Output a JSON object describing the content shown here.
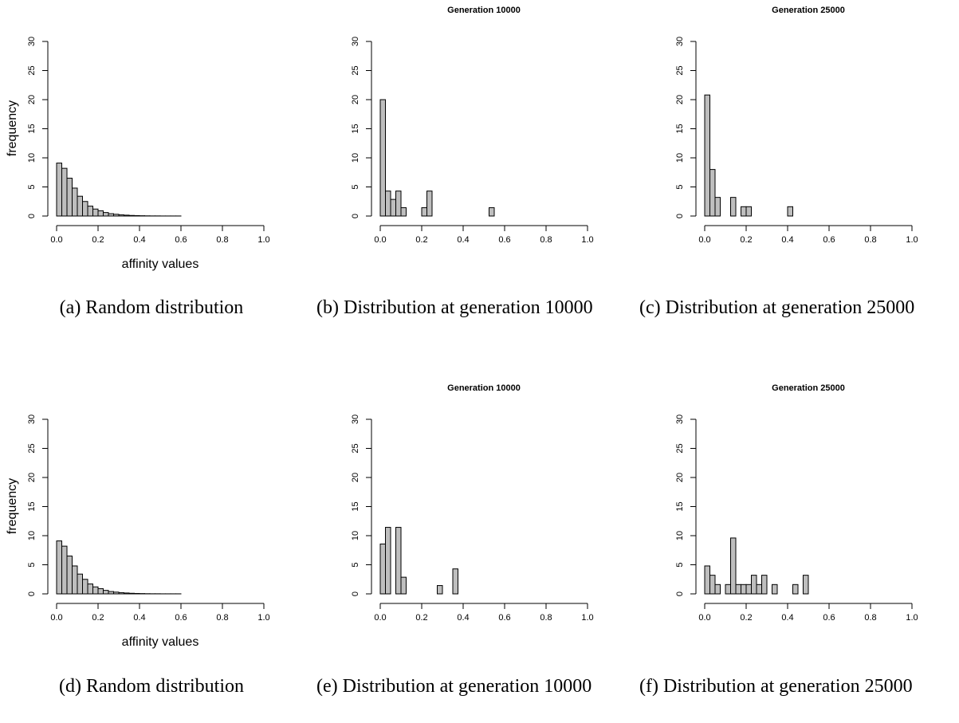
{
  "chart_data": [
    {
      "type": "histogram",
      "caption": "(a) Random distribution",
      "xlabel": "affinity values",
      "ylabel": "frequency",
      "bins": [
        0,
        0.025,
        0.05,
        0.075,
        0.1,
        0.125,
        0.15,
        0.175,
        0.2,
        0.225,
        0.25,
        0.275,
        0.3,
        0.325,
        0.35,
        0.375,
        0.4,
        0.425,
        0.45,
        0.475,
        0.5,
        0.525,
        0.55,
        0.575,
        0.6,
        0.625,
        0.65,
        0.675,
        0.7,
        0.725,
        0.75,
        0.775,
        0.8,
        0.825,
        0.85,
        0.875,
        0.9,
        0.925,
        0.95,
        0.975,
        1
      ],
      "values": [
        9.1,
        8.2,
        6.5,
        4.8,
        3.4,
        2.5,
        1.7,
        1.2,
        0.9,
        0.6,
        0.4,
        0.3,
        0.2,
        0.15,
        0.1,
        0.07,
        0.05,
        0.03,
        0.02,
        0.02,
        0.01,
        0.01,
        0.01,
        0.01,
        0,
        0,
        0,
        0,
        0,
        0,
        0,
        0,
        0,
        0,
        0,
        0,
        0,
        0,
        0,
        0
      ],
      "color": "#bebebe",
      "xlim": [
        0,
        1
      ],
      "ylim": [
        0,
        30
      ],
      "xticks": [
        {
          "value": 0,
          "label": "0.0"
        },
        0.2,
        0.4,
        0.6,
        0.8,
        {
          "value": 1,
          "label": "1.0"
        }
      ],
      "yticks": [
        0,
        5,
        10,
        15,
        20,
        25,
        30
      ]
    },
    {
      "type": "histogram",
      "title": "Generation 10000",
      "caption": "(b) Distribution at generation 10000",
      "bins": [
        0,
        0.025,
        0.05,
        0.075,
        0.1,
        0.125,
        0.15,
        0.175,
        0.2,
        0.225,
        0.25,
        0.275,
        0.3,
        0.325,
        0.35,
        0.375,
        0.4,
        0.425,
        0.45,
        0.475,
        0.5,
        0.525,
        0.55,
        0.575,
        0.6,
        0.625,
        0.65,
        0.675,
        0.7,
        0.725,
        0.75,
        0.775,
        0.8,
        0.825,
        0.85,
        0.875,
        0.9,
        0.925,
        0.95,
        0.975,
        1
      ],
      "values": [
        20,
        4.29,
        2.86,
        4.29,
        1.43,
        0,
        0,
        0,
        1.43,
        4.29,
        0,
        0,
        0,
        0,
        0,
        0,
        0,
        0,
        0,
        0,
        0,
        1.43,
        0,
        0,
        0,
        0,
        0,
        0,
        0,
        0,
        0,
        0,
        0,
        0,
        0,
        0,
        0,
        0,
        0,
        0
      ],
      "color": "#bebebe",
      "xlim": [
        0,
        1
      ],
      "ylim": [
        0,
        30
      ],
      "xticks": [
        {
          "value": 0,
          "label": "0.0"
        },
        0.2,
        0.4,
        0.6,
        0.8,
        {
          "value": 1,
          "label": "1.0"
        }
      ],
      "yticks": [
        0,
        5,
        10,
        15,
        20,
        25,
        30
      ]
    },
    {
      "type": "histogram",
      "title": "Generation 25000",
      "caption": "(c) Distribution at generation 25000",
      "bins": [
        0,
        0.025,
        0.05,
        0.075,
        0.1,
        0.125,
        0.15,
        0.175,
        0.2,
        0.225,
        0.25,
        0.275,
        0.3,
        0.325,
        0.35,
        0.375,
        0.4,
        0.425,
        0.45,
        0.475,
        0.5,
        0.525,
        0.55,
        0.575,
        0.6,
        0.625,
        0.65,
        0.675,
        0.7,
        0.725,
        0.75,
        0.775,
        0.8,
        0.825,
        0.85,
        0.875,
        0.9,
        0.925,
        0.95,
        0.975,
        1
      ],
      "values": [
        20.8,
        8,
        3.2,
        0,
        0,
        3.2,
        0,
        1.6,
        1.6,
        0,
        0,
        0,
        0,
        0,
        0,
        0,
        1.6,
        0,
        0,
        0,
        0,
        0,
        0,
        0,
        0,
        0,
        0,
        0,
        0,
        0,
        0,
        0,
        0,
        0,
        0,
        0,
        0,
        0,
        0,
        0
      ],
      "color": "#bebebe",
      "xlim": [
        0,
        1
      ],
      "ylim": [
        0,
        30
      ],
      "xticks": [
        {
          "value": 0,
          "label": "0.0"
        },
        0.2,
        0.4,
        0.6,
        0.8,
        {
          "value": 1,
          "label": "1.0"
        }
      ],
      "yticks": [
        0,
        5,
        10,
        15,
        20,
        25,
        30
      ]
    },
    {
      "type": "histogram",
      "caption": "(d) Random distribution",
      "xlabel": "affinity values",
      "ylabel": "frequency",
      "bins": [
        0,
        0.025,
        0.05,
        0.075,
        0.1,
        0.125,
        0.15,
        0.175,
        0.2,
        0.225,
        0.25,
        0.275,
        0.3,
        0.325,
        0.35,
        0.375,
        0.4,
        0.425,
        0.45,
        0.475,
        0.5,
        0.525,
        0.55,
        0.575,
        0.6,
        0.625,
        0.65,
        0.675,
        0.7,
        0.725,
        0.75,
        0.775,
        0.8,
        0.825,
        0.85,
        0.875,
        0.9,
        0.925,
        0.95,
        0.975,
        1
      ],
      "values": [
        9.1,
        8.2,
        6.5,
        4.8,
        3.4,
        2.5,
        1.7,
        1.2,
        0.9,
        0.6,
        0.4,
        0.3,
        0.2,
        0.15,
        0.1,
        0.07,
        0.05,
        0.03,
        0.02,
        0.02,
        0.01,
        0.01,
        0.01,
        0.01,
        0,
        0,
        0,
        0,
        0,
        0,
        0,
        0,
        0,
        0,
        0,
        0,
        0,
        0,
        0,
        0
      ],
      "color": "#bebebe",
      "xlim": [
        0,
        1
      ],
      "ylim": [
        0,
        30
      ],
      "xticks": [
        {
          "value": 0,
          "label": "0.0"
        },
        0.2,
        0.4,
        0.6,
        0.8,
        {
          "value": 1,
          "label": "1.0"
        }
      ],
      "yticks": [
        0,
        5,
        10,
        15,
        20,
        25,
        30
      ]
    },
    {
      "type": "histogram",
      "title": "Generation 10000",
      "caption": "(e) Distribution at generation 10000",
      "bins": [
        0,
        0.025,
        0.05,
        0.075,
        0.1,
        0.125,
        0.15,
        0.175,
        0.2,
        0.225,
        0.25,
        0.275,
        0.3,
        0.325,
        0.35,
        0.375,
        0.4,
        0.425,
        0.45,
        0.475,
        0.5,
        0.525,
        0.55,
        0.575,
        0.6,
        0.625,
        0.65,
        0.675,
        0.7,
        0.725,
        0.75,
        0.775,
        0.8,
        0.825,
        0.85,
        0.875,
        0.9,
        0.925,
        0.95,
        0.975,
        1
      ],
      "values": [
        8.57,
        11.43,
        0,
        11.43,
        2.86,
        0,
        0,
        0,
        0,
        0,
        0,
        1.43,
        0,
        0,
        4.29,
        0,
        0,
        0,
        0,
        0,
        0,
        0,
        0,
        0,
        0,
        0,
        0,
        0,
        0,
        0,
        0,
        0,
        0,
        0,
        0,
        0,
        0,
        0,
        0,
        0
      ],
      "color": "#bebebe",
      "xlim": [
        0,
        1
      ],
      "ylim": [
        0,
        30
      ],
      "xticks": [
        {
          "value": 0,
          "label": "0.0"
        },
        0.2,
        0.4,
        0.6,
        0.8,
        {
          "value": 1,
          "label": "1.0"
        }
      ],
      "yticks": [
        0,
        5,
        10,
        15,
        20,
        25,
        30
      ]
    },
    {
      "type": "histogram",
      "title": "Generation 25000",
      "caption": "(f) Distribution at generation 25000",
      "bins": [
        0,
        0.025,
        0.05,
        0.075,
        0.1,
        0.125,
        0.15,
        0.175,
        0.2,
        0.225,
        0.25,
        0.275,
        0.3,
        0.325,
        0.35,
        0.375,
        0.4,
        0.425,
        0.45,
        0.475,
        0.5,
        0.525,
        0.55,
        0.575,
        0.6,
        0.625,
        0.65,
        0.675,
        0.7,
        0.725,
        0.75,
        0.775,
        0.8,
        0.825,
        0.85,
        0.875,
        0.9,
        0.925,
        0.95,
        0.975,
        1
      ],
      "values": [
        4.8,
        3.2,
        1.6,
        0,
        1.6,
        9.6,
        1.6,
        1.6,
        1.6,
        3.2,
        1.6,
        3.2,
        0,
        1.6,
        0,
        0,
        0,
        1.6,
        0,
        3.2,
        0,
        0,
        0,
        0,
        0,
        0,
        0,
        0,
        0,
        0,
        0,
        0,
        0,
        0,
        0,
        0,
        0,
        0,
        0,
        0
      ],
      "color": "#bebebe",
      "xlim": [
        0,
        1
      ],
      "ylim": [
        0,
        30
      ],
      "xticks": [
        {
          "value": 0,
          "label": "0.0"
        },
        0.2,
        0.4,
        0.6,
        0.8,
        {
          "value": 1,
          "label": "1.0"
        }
      ],
      "yticks": [
        0,
        5,
        10,
        15,
        20,
        25,
        30
      ]
    }
  ]
}
